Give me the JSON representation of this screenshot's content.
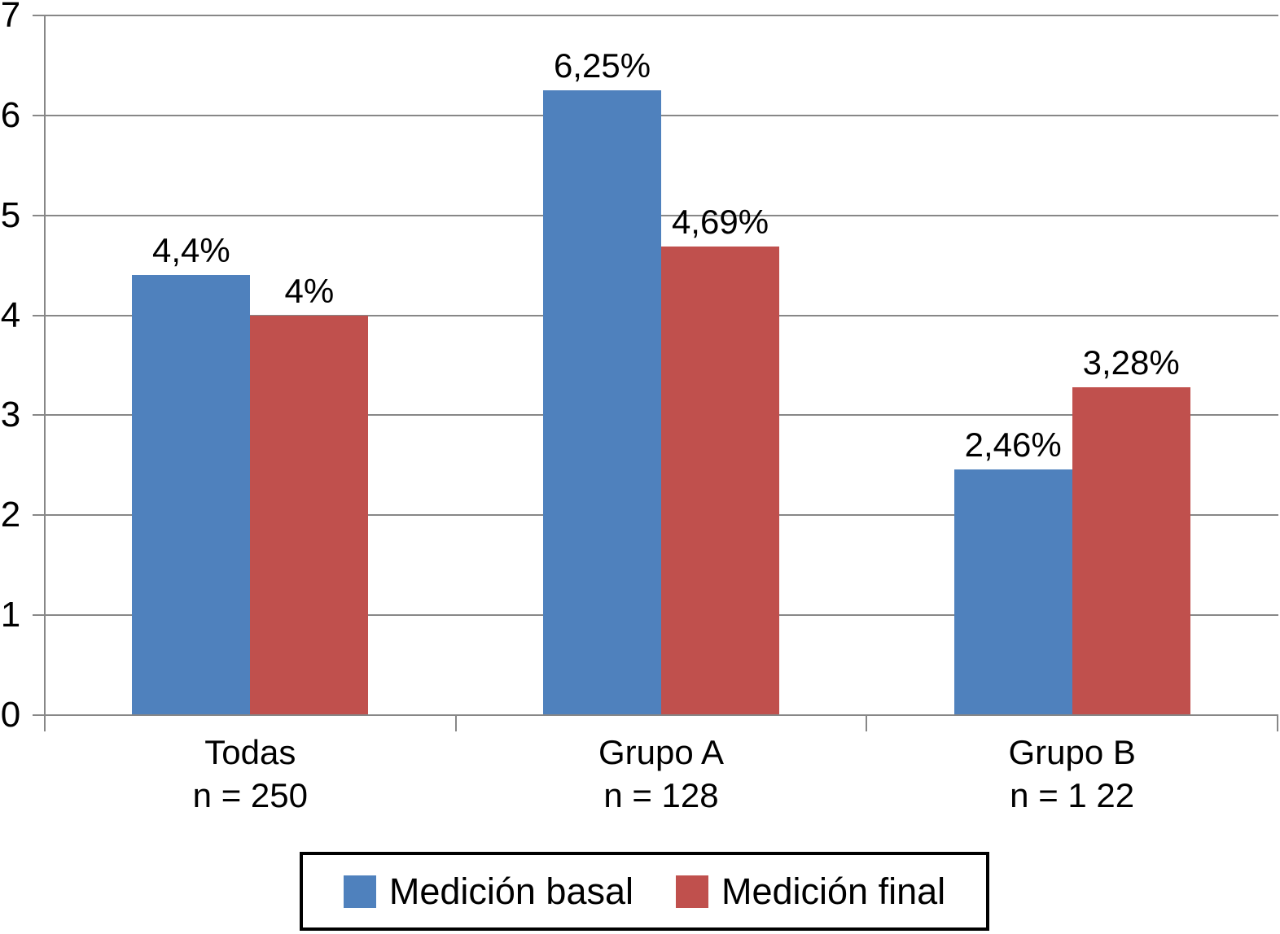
{
  "chart_data": {
    "type": "bar",
    "title": "",
    "xlabel": "",
    "ylabel": "",
    "ylim": [
      0,
      7
    ],
    "yticks": [
      0,
      1,
      2,
      3,
      4,
      5,
      6,
      7
    ],
    "ytick_labels": [
      "0",
      "1",
      "2",
      "3",
      "4",
      "5",
      "6",
      "7"
    ],
    "grid": true,
    "legend_position": "bottom",
    "gridline_color": "#878787",
    "categories": [
      "Todas",
      "Grupo A",
      "Grupo B"
    ],
    "category_sublabels": [
      "n = 250",
      "n = 128",
      "n = 1 22"
    ],
    "series": [
      {
        "name": "Medición basal",
        "color": "#4F81BD",
        "values": [
          4.4,
          6.25,
          2.46
        ],
        "data_labels": [
          "4,4%",
          "6,25%",
          "2,46%"
        ]
      },
      {
        "name": "Medición final",
        "color": "#C0504D",
        "values": [
          4.0,
          4.69,
          3.28
        ],
        "data_labels": [
          "4%",
          "4,69%",
          "3,28%"
        ]
      }
    ]
  }
}
